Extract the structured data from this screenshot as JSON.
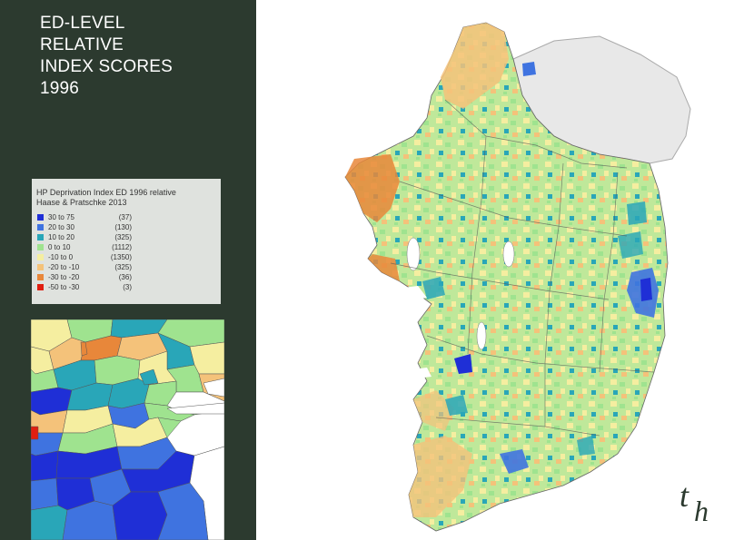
{
  "title": {
    "lines": [
      "ED-LEVEL",
      "RELATIVE",
      "INDEX SCORES",
      "1996"
    ]
  },
  "legend": {
    "title_lines": [
      "HP Deprivation Index ED 1996 relative",
      "Haase & Pratschke 2013"
    ],
    "items": [
      {
        "range": "30 to 75",
        "count": "(37)",
        "color": "#1f2fd6"
      },
      {
        "range": "20 to 30",
        "count": "(130)",
        "color": "#3f73e0"
      },
      {
        "range": "10 to 20",
        "count": "(325)",
        "color": "#29a6b8"
      },
      {
        "range": "0 to 10",
        "count": "(1112)",
        "color": "#9fe38f"
      },
      {
        "range": "-10 to 0",
        "count": "(1350)",
        "color": "#f5eea0"
      },
      {
        "range": "-20 to -10",
        "count": "(325)",
        "color": "#f4c27a"
      },
      {
        "range": "-30 to -20",
        "count": "(36)",
        "color": "#e8873a"
      },
      {
        "range": "-50 to -30",
        "count": "(3)",
        "color": "#e01f10"
      }
    ]
  },
  "colors": {
    "panel_bg": "#2c3a2f",
    "legend_bg": "#dfe2de",
    "northern_ireland": "#e8e8e8",
    "water": "#ffffff"
  },
  "logo": {
    "text_t": "t",
    "text_h": "h",
    "icon": "th-logo"
  }
}
